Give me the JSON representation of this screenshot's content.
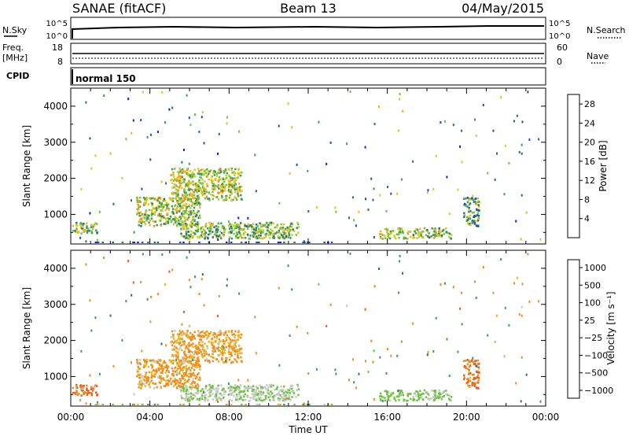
{
  "header": {
    "station": "SANAE (fitACF)",
    "beam": "Beam 13",
    "date": "04/May/2015"
  },
  "top_strip": {
    "left_label": "N.Sky",
    "left_ticks": [
      "10^5",
      "10^0"
    ],
    "right_label": "N.Search",
    "right_ticks": [
      "10^5",
      "10^0"
    ]
  },
  "freq_strip": {
    "left_label_1": "Freq.",
    "left_label_2": "[MHz]",
    "left_ticks": [
      "18",
      "8"
    ],
    "right_label": "Nave",
    "right_ticks": [
      "60",
      "0"
    ]
  },
  "cpid_strip": {
    "label": "CPID",
    "mode": "normal 150"
  },
  "colors": {
    "power": [
      "#0a1cf0",
      "#1f4fb4",
      "#2e6e6e",
      "#3c9a5a",
      "#6cc43c",
      "#c8d21e",
      "#f0b41e",
      "#f08c1e",
      "#f0501e",
      "#e61414"
    ],
    "velocity": [
      "#e61414",
      "#f05a14",
      "#f08c1e",
      "#f0b41e",
      "#c8c8c8",
      "#c8c8c8",
      "#6cc43c",
      "#3c9a5a",
      "#2e6e6e",
      "#1f4fb4",
      "#0a1cf0"
    ]
  },
  "chart_data": [
    {
      "type": "heatmap",
      "title": "",
      "xlabel": "",
      "ylabel": "Slant Range [km]",
      "xlim": [
        0,
        24
      ],
      "ylim": [
        180,
        4500
      ],
      "x_ticks": [
        0,
        4,
        8,
        12,
        16,
        20,
        24
      ],
      "y_ticks": [
        "1000",
        "2000",
        "3000",
        "4000"
      ],
      "colorbar": {
        "label": "Power [dB]",
        "range": [
          0,
          30
        ],
        "ticks": [
          "4",
          "8",
          "12",
          "16",
          "20",
          "24",
          "28"
        ]
      },
      "echo_regions": [
        {
          "t_start": 0.0,
          "t_end": 1.3,
          "range_min": 500,
          "range_max": 800,
          "value": 14
        },
        {
          "t_start": 3.3,
          "t_end": 6.5,
          "range_min": 700,
          "range_max": 1500,
          "value": 15
        },
        {
          "t_start": 5.0,
          "t_end": 8.6,
          "range_min": 1400,
          "range_max": 2300,
          "value": 16
        },
        {
          "t_start": 5.5,
          "t_end": 11.5,
          "range_min": 350,
          "range_max": 800,
          "value": 13
        },
        {
          "t_start": 15.5,
          "t_end": 19.2,
          "range_min": 350,
          "range_max": 650,
          "value": 15
        },
        {
          "t_start": 19.8,
          "t_end": 20.6,
          "range_min": 700,
          "range_max": 1500,
          "value": 10
        }
      ]
    },
    {
      "type": "heatmap",
      "title": "",
      "xlabel": "Time UT",
      "ylabel": "Slant Range [km]",
      "xlim": [
        0,
        24
      ],
      "ylim": [
        180,
        4500
      ],
      "x_ticks": [
        0,
        4,
        8,
        12,
        16,
        20,
        24
      ],
      "x_tick_labels": [
        "00:00",
        "04:00",
        "08:00",
        "12:00",
        "16:00",
        "20:00",
        "00:00"
      ],
      "y_ticks": [
        "1000",
        "2000",
        "3000",
        "4000"
      ],
      "colorbar": {
        "label": "Velocity [m s⁻¹]",
        "ticks": [
          "1000",
          "500",
          "100",
          "25",
          "−25",
          "−100",
          "−500",
          "−1000"
        ]
      },
      "echo_regions": [
        {
          "t_start": 0.0,
          "t_end": 1.3,
          "range_min": 500,
          "range_max": 800,
          "value": -500
        },
        {
          "t_start": 3.3,
          "t_end": 6.5,
          "range_min": 700,
          "range_max": 1500,
          "value": -150
        },
        {
          "t_start": 5.0,
          "t_end": 8.6,
          "range_min": 1400,
          "range_max": 2300,
          "value": -100
        },
        {
          "t_start": 5.5,
          "t_end": 11.5,
          "range_min": 350,
          "range_max": 800,
          "value": 20
        },
        {
          "t_start": 15.5,
          "t_end": 19.2,
          "range_min": 350,
          "range_max": 650,
          "value": 50
        },
        {
          "t_start": 19.8,
          "t_end": 20.6,
          "range_min": 700,
          "range_max": 1500,
          "value": -500
        }
      ]
    }
  ]
}
